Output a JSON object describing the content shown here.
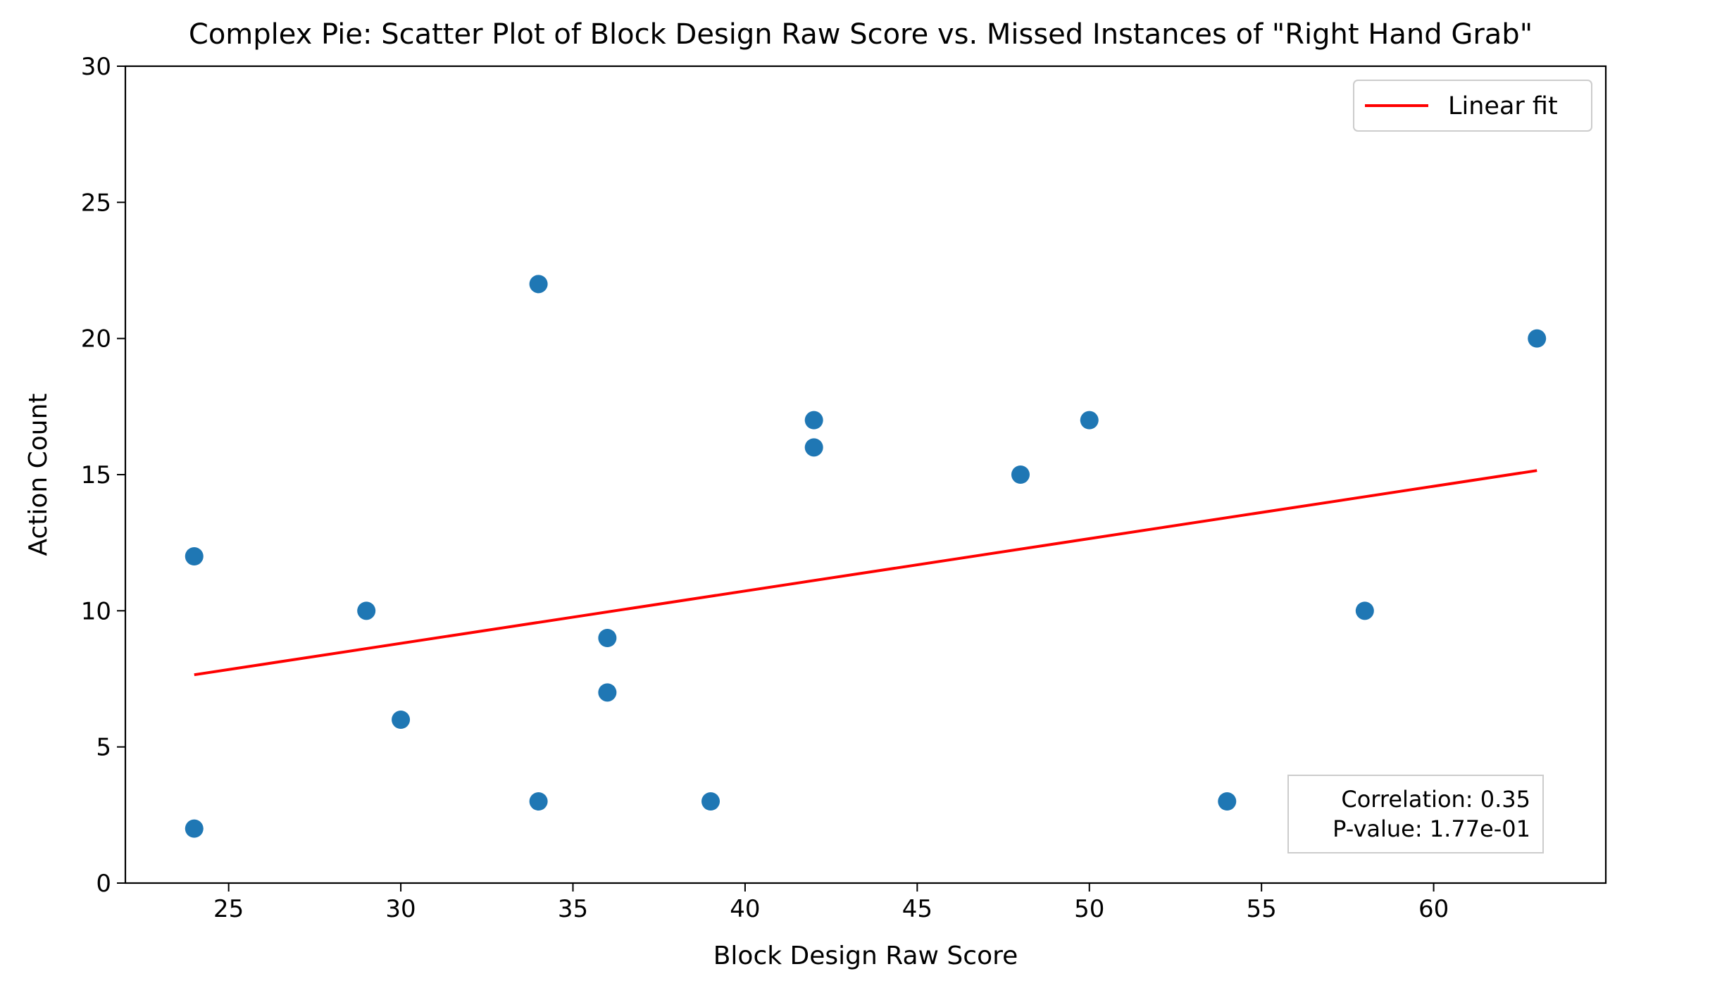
{
  "chart_data": {
    "type": "scatter",
    "title": "Complex Pie: Scatter Plot of Block Design Raw Score vs. Missed Instances of \"Right Hand Grab\"",
    "xlabel": "Block Design Raw Score",
    "ylabel": "Action Count",
    "xlim": [
      22.0,
      65.0
    ],
    "ylim": [
      0,
      30
    ],
    "xticks": [
      25,
      30,
      35,
      40,
      45,
      50,
      55,
      60
    ],
    "yticks": [
      0,
      5,
      10,
      15,
      20,
      25,
      30
    ],
    "grid": false,
    "points": [
      {
        "x": 24,
        "y": 12
      },
      {
        "x": 24,
        "y": 2
      },
      {
        "x": 29,
        "y": 10
      },
      {
        "x": 30,
        "y": 6
      },
      {
        "x": 34,
        "y": 22
      },
      {
        "x": 34,
        "y": 3
      },
      {
        "x": 36,
        "y": 9
      },
      {
        "x": 36,
        "y": 7
      },
      {
        "x": 39,
        "y": 3
      },
      {
        "x": 42,
        "y": 17
      },
      {
        "x": 42,
        "y": 16
      },
      {
        "x": 48,
        "y": 15
      },
      {
        "x": 50,
        "y": 17
      },
      {
        "x": 54,
        "y": 3
      },
      {
        "x": 58,
        "y": 10
      },
      {
        "x": 63,
        "y": 20
      }
    ],
    "fit_line": {
      "name": "Linear fit",
      "x": [
        24,
        63
      ],
      "y": [
        7.65,
        15.15
      ]
    },
    "legend": {
      "position": "top-right",
      "entries": [
        "Linear fit"
      ]
    },
    "annotation": {
      "lines": [
        "Correlation: 0.35",
        "P-value: 1.77e-01"
      ],
      "position": "bottom-right"
    },
    "colors": {
      "points": "#1f77b4",
      "fit_line": "#ff0000"
    }
  }
}
